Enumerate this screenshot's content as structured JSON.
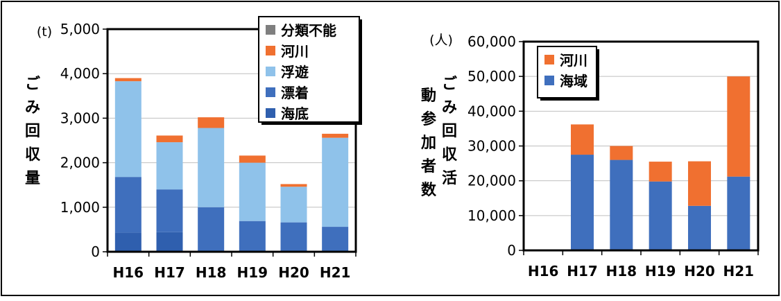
{
  "colors": {
    "kaitei": "#2f5fae",
    "hyochaku": "#3f6fbd",
    "fuyu": "#8fc2ea",
    "kasen": "#f07030",
    "bunrui": "#7f7f7f",
    "kaiiki": "#3f6fbd"
  },
  "chart_data": [
    {
      "type": "bar",
      "stacked": true,
      "unit_label": "(t)",
      "ylabel": "ごみ回収量",
      "categories": [
        "H16",
        "H17",
        "H18",
        "H19",
        "H20",
        "H21"
      ],
      "ylim": [
        0,
        5000
      ],
      "yticks": [
        0,
        1000,
        2000,
        3000,
        4000,
        5000
      ],
      "ytick_labels": [
        "0",
        "1,000",
        "2,000",
        "3,000",
        "4,000",
        "5,000"
      ],
      "legend_placement": "top-right",
      "series": [
        {
          "name": "海底",
          "color_key": "kaitei",
          "values": [
            430,
            440,
            0,
            0,
            0,
            0
          ]
        },
        {
          "name": "漂着",
          "color_key": "hyochaku",
          "values": [
            1250,
            960,
            1000,
            690,
            660,
            560
          ]
        },
        {
          "name": "浮遊",
          "color_key": "fuyu",
          "values": [
            2150,
            1060,
            1780,
            1310,
            800,
            2000
          ]
        },
        {
          "name": "河川",
          "color_key": "kasen",
          "values": [
            70,
            150,
            240,
            160,
            60,
            90
          ]
        },
        {
          "name": "分類不能",
          "color_key": "bunrui",
          "values": [
            0,
            0,
            0,
            0,
            0,
            0
          ]
        }
      ]
    },
    {
      "type": "bar",
      "stacked": true,
      "unit_label": "(人)",
      "ylabel": "ごみ回収活動参加者数",
      "categories": [
        "H16",
        "H17",
        "H18",
        "H19",
        "H20",
        "H21"
      ],
      "ylim": [
        0,
        60000
      ],
      "yticks": [
        0,
        10000,
        20000,
        30000,
        40000,
        50000,
        60000
      ],
      "ytick_labels": [
        "0",
        "10,000",
        "20,000",
        "30,000",
        "40,000",
        "50,000",
        "60,000"
      ],
      "legend_placement": "top-left",
      "series": [
        {
          "name": "海域",
          "color_key": "kaiiki",
          "values": [
            0,
            27500,
            26000,
            19800,
            12800,
            21200
          ]
        },
        {
          "name": "河川",
          "color_key": "kasen",
          "values": [
            0,
            8700,
            4000,
            5700,
            12800,
            28800
          ]
        }
      ]
    }
  ]
}
